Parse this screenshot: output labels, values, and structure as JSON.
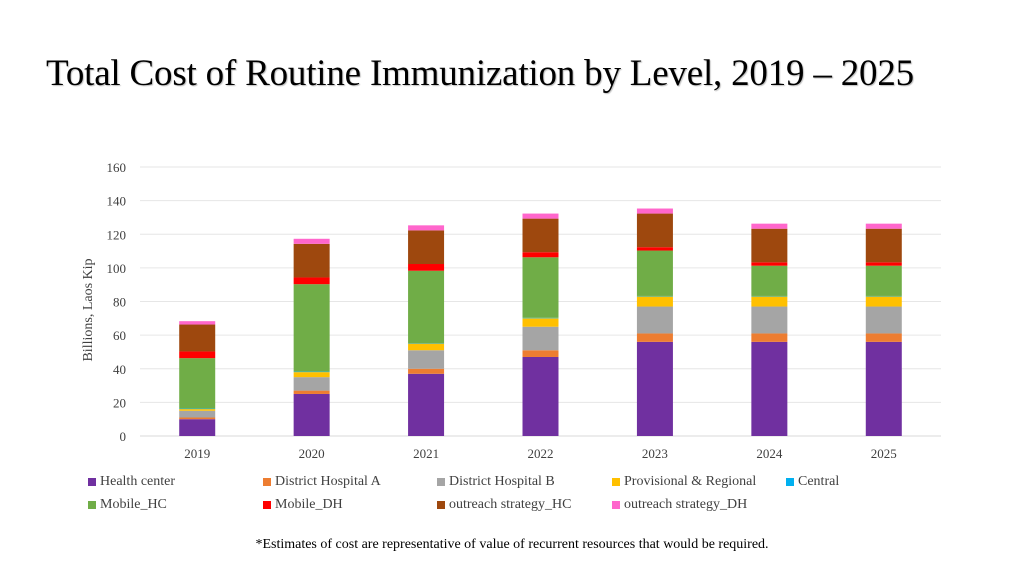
{
  "title": "Total Cost of Routine Immunization by Level, 2019 – 2025",
  "footnote": "*Estimates of cost are representative of value of recurrent resources that would be required.",
  "chart_data": {
    "type": "bar",
    "stacked": true,
    "title": "Total Cost of Routine Immunization by Level, 2019 – 2025",
    "xlabel": "",
    "ylabel": "Billions, Laos Kip",
    "ylim": [
      0,
      160
    ],
    "yticks": [
      "0",
      "20",
      "40",
      "60",
      "80",
      "100",
      "120",
      "140",
      "160"
    ],
    "grid": true,
    "legend_position": "bottom",
    "categories": [
      "2019",
      "2020",
      "2021",
      "2022",
      "2023",
      "2024",
      "2025"
    ],
    "series": [
      {
        "name": "Health center",
        "color": "#7030A0",
        "values": [
          10,
          25,
          37,
          47,
          56,
          56,
          56
        ]
      },
      {
        "name": "District Hospital A",
        "color": "#ED7D31",
        "values": [
          1,
          2,
          3,
          4,
          5,
          5,
          5
        ]
      },
      {
        "name": "District Hospital B",
        "color": "#A5A5A5",
        "values": [
          4,
          8,
          11,
          14,
          16,
          16,
          16
        ]
      },
      {
        "name": "Provisional & Regional",
        "color": "#FFC000",
        "values": [
          1,
          3,
          4,
          5,
          6,
          6,
          6
        ]
      },
      {
        "name": "Central",
        "color": "#00B0F0",
        "values": [
          0.3,
          0.3,
          0.3,
          0.3,
          0.3,
          0.3,
          0.3
        ]
      },
      {
        "name": "Mobile_HC",
        "color": "#70AD47",
        "values": [
          30,
          52,
          43,
          36,
          27,
          18,
          18
        ]
      },
      {
        "name": "Mobile_DH",
        "color": "#FF0000",
        "values": [
          4,
          4,
          4,
          3,
          2,
          2,
          2
        ]
      },
      {
        "name": "outreach strategy_HC",
        "color": "#9E480E",
        "values": [
          16,
          20,
          20,
          20,
          20,
          20,
          20
        ]
      },
      {
        "name": "outreach strategy_DH",
        "color": "#FF66CC",
        "values": [
          2,
          3,
          3,
          3,
          3,
          3,
          3
        ]
      }
    ]
  }
}
